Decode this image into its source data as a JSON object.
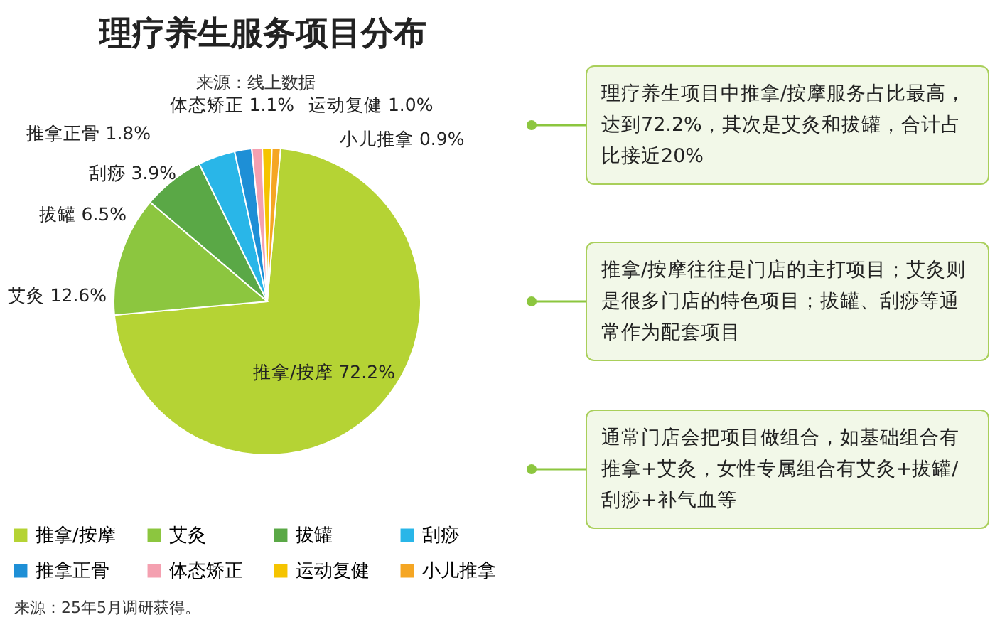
{
  "chart_data": {
    "type": "pie",
    "title": "理疗养生服务项目分布",
    "subtitle": "来源：线上数据",
    "categories": [
      "推拿/按摩",
      "艾灸",
      "拔罐",
      "刮痧",
      "推拿正骨",
      "体态矫正",
      "运动复健",
      "小儿推拿"
    ],
    "values": [
      72.2,
      12.6,
      6.5,
      3.9,
      1.8,
      1.1,
      1.0,
      0.9
    ],
    "value_labels": [
      "72.2%",
      "12.6%",
      "6.5%",
      "3.9%",
      "1.8%",
      "1.1%",
      "1.0%",
      "0.9%"
    ],
    "colors": [
      "#b5d334",
      "#8cc63f",
      "#5aa846",
      "#29b6e8",
      "#1e8fd6",
      "#f4a0b0",
      "#f5c400",
      "#f5a623"
    ],
    "legend": "bottom",
    "annotations": [
      "理疗养生项目中推拿/按摩服务占比最高，达到72.2%，其次是艾灸和拔罐，合计占比接近20%",
      "推拿/按摩往往是门店的主打项目；艾灸则是很多门店的特色项目；拔罐、刮痧等通常作为配套项目",
      "通常门店会把项目做组合，如基础组合有推拿+艾灸，女性专属组合有艾灸+拔罐/刮痧+补气血等",
      "来源：25年5月调研获得。"
    ]
  }
}
